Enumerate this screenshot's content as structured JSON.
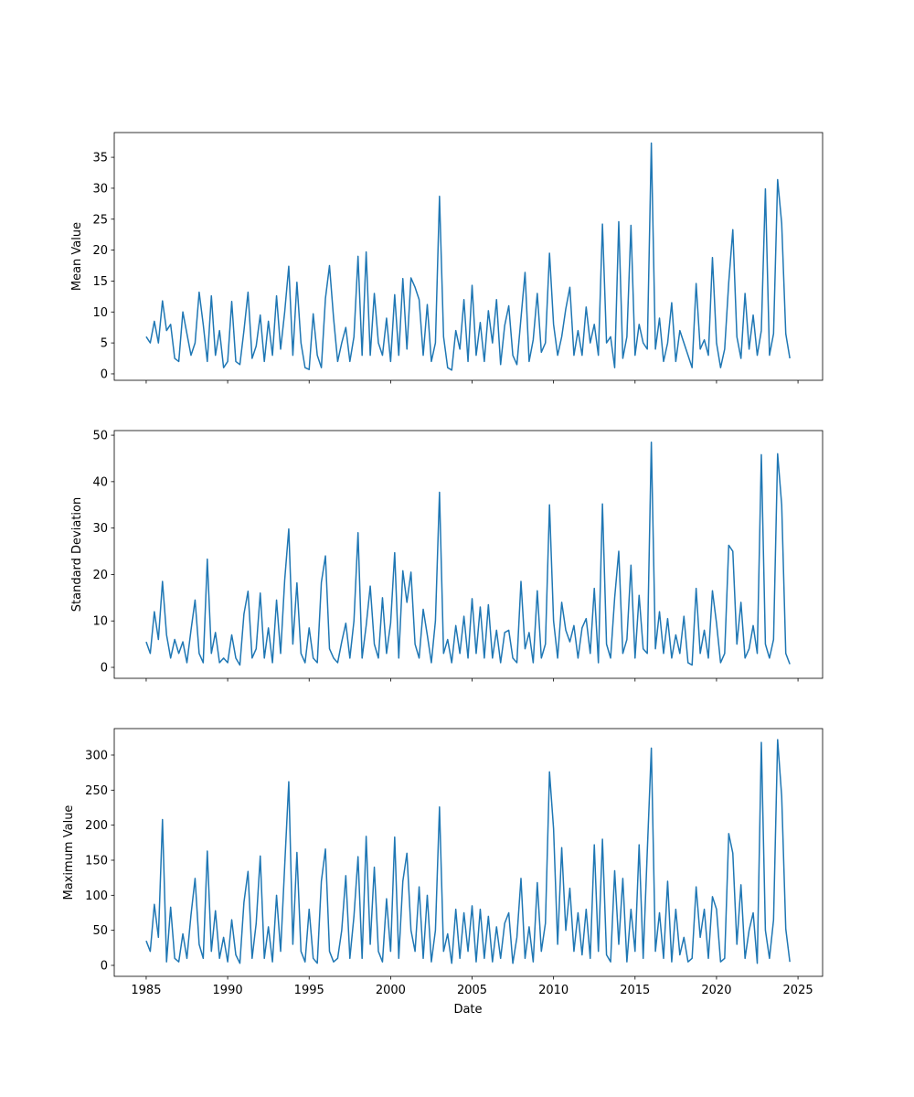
{
  "chart_data": {
    "type": "line",
    "xlabel": "Date",
    "xlim": [
      1983.04,
      2026.51
    ],
    "xticks": [
      1985,
      1990,
      1995,
      2000,
      2005,
      2010,
      2015,
      2020,
      2025
    ],
    "x": [
      1985,
      1985.25,
      1985.5,
      1985.75,
      1986,
      1986.25,
      1986.5,
      1986.75,
      1987,
      1987.25,
      1987.5,
      1987.75,
      1988,
      1988.25,
      1988.5,
      1988.75,
      1989,
      1989.25,
      1989.5,
      1989.75,
      1990,
      1990.25,
      1990.5,
      1990.75,
      1991,
      1991.25,
      1991.5,
      1991.75,
      1992,
      1992.25,
      1992.5,
      1992.75,
      1993,
      1993.25,
      1993.5,
      1993.75,
      1994,
      1994.25,
      1994.5,
      1994.75,
      1995,
      1995.25,
      1995.5,
      1995.75,
      1996,
      1996.25,
      1996.5,
      1996.75,
      1997,
      1997.25,
      1997.5,
      1997.75,
      1998,
      1998.25,
      1998.5,
      1998.75,
      1999,
      1999.25,
      1999.5,
      1999.75,
      2000,
      2000.25,
      2000.5,
      2000.75,
      2001,
      2001.25,
      2001.5,
      2001.75,
      2002,
      2002.25,
      2002.5,
      2002.75,
      2003,
      2003.25,
      2003.5,
      2003.75,
      2004,
      2004.25,
      2004.5,
      2004.75,
      2005,
      2005.25,
      2005.5,
      2005.75,
      2006,
      2006.25,
      2006.5,
      2006.75,
      2007,
      2007.25,
      2007.5,
      2007.75,
      2008,
      2008.25,
      2008.5,
      2008.75,
      2009,
      2009.25,
      2009.5,
      2009.75,
      2010,
      2010.25,
      2010.5,
      2010.75,
      2011,
      2011.25,
      2011.5,
      2011.75,
      2012,
      2012.25,
      2012.5,
      2012.75,
      2013,
      2013.25,
      2013.5,
      2013.75,
      2014,
      2014.25,
      2014.5,
      2014.75,
      2015,
      2015.25,
      2015.5,
      2015.75,
      2016,
      2016.25,
      2016.5,
      2016.75,
      2017,
      2017.25,
      2017.5,
      2017.75,
      2018,
      2018.25,
      2018.5,
      2018.75,
      2019,
      2019.25,
      2019.5,
      2019.75,
      2020,
      2020.25,
      2020.5,
      2020.75,
      2021,
      2021.25,
      2021.5,
      2021.75,
      2022,
      2022.25,
      2022.5,
      2022.75,
      2023,
      2023.25,
      2023.5,
      2023.75,
      2024,
      2024.25,
      2024.5
    ],
    "panels": [
      {
        "ylabel": "Mean Value",
        "ylim": [
          -1.04,
          39.0
        ],
        "yticks": [
          0,
          5,
          10,
          15,
          20,
          25,
          30,
          35
        ],
        "series": [
          {
            "color": "#1f77b4",
            "values": [
              6,
              5,
              8.5,
              5,
              11.8,
              7,
              8,
              2.5,
              2,
              10,
              6.5,
              3,
              5,
              13.2,
              8,
              2,
              12.6,
              3,
              7,
              1,
              2,
              11.7,
              2,
              1.5,
              7,
              13.2,
              2.5,
              4.5,
              9.5,
              2,
              8.5,
              3,
              12.6,
              4,
              10,
              17.4,
              3,
              14.8,
              5,
              1,
              0.7,
              9.7,
              3,
              1,
              12.2,
              17.5,
              9,
              2,
              5,
              7.5,
              2,
              6,
              19,
              3,
              19.7,
              3,
              13,
              5,
              3,
              9,
              2,
              12.8,
              3,
              15.4,
              4,
              15.5,
              14,
              12,
              3,
              11.2,
              2,
              5,
              28.7,
              6,
              1,
              0.6,
              7,
              4,
              12,
              2,
              14.3,
              3,
              8.3,
              2,
              10.2,
              5,
              12,
              1.5,
              7.8,
              11,
              3,
              1.5,
              9,
              16.4,
              2,
              5.5,
              13,
              3.5,
              5,
              19.5,
              8,
              3,
              6,
              10.5,
              14,
              3,
              7,
              3,
              10.8,
              5,
              8,
              3,
              24.2,
              5,
              6,
              1,
              24.6,
              2.5,
              6,
              24,
              3,
              8,
              5,
              4,
              37.3,
              4,
              9,
              2,
              5,
              11.5,
              2,
              7,
              5,
              3,
              1,
              14.6,
              4,
              5.5,
              3,
              18.8,
              5,
              1,
              4,
              14.8,
              23.3,
              6,
              2.5,
              13,
              4,
              9.5,
              3,
              7,
              29.9,
              3,
              6.5,
              31.4,
              24.3,
              6.5,
              2.5
            ]
          }
        ]
      },
      {
        "ylabel": "Standard Deviation",
        "ylim": [
          -2.36,
          51.0
        ],
        "yticks": [
          0,
          10,
          20,
          30,
          40,
          50
        ],
        "series": [
          {
            "color": "#1f77b4",
            "values": [
              5.5,
              3,
              12,
              6,
              18.5,
              7,
              2,
              6,
              3,
              5.5,
              1,
              8,
              14.5,
              3,
              1,
              23.3,
              3,
              7.5,
              1,
              2,
              1,
              7,
              2,
              0.5,
              11.5,
              16.4,
              2,
              4,
              16,
              2,
              8.5,
              1,
              14.5,
              3,
              18.8,
              29.8,
              5,
              18.2,
              3,
              1,
              8.5,
              2,
              1,
              18.3,
              24,
              4,
              2,
              1,
              5.5,
              9.5,
              2,
              10,
              29,
              2,
              9,
              17.5,
              5,
              2,
              15,
              3,
              9.5,
              24.7,
              2,
              20.8,
              14,
              20.5,
              5,
              2,
              12.5,
              7,
              1,
              10,
              37.7,
              3,
              6,
              1,
              9,
              3,
              11,
              2,
              14.8,
              3,
              13,
              2,
              13.5,
              2,
              8,
              1,
              7.5,
              8,
              2,
              1,
              18.5,
              4,
              7.5,
              1,
              16.5,
              2,
              5,
              35,
              10,
              2,
              14,
              8,
              5.5,
              9,
              2,
              8.5,
              10.5,
              3,
              17,
              1,
              35.2,
              5,
              2,
              15,
              25,
              3,
              6,
              22,
              2,
              15.5,
              4,
              3,
              48.5,
              4,
              12,
              3,
              10.5,
              2,
              7,
              3,
              11,
              1,
              0.5,
              17,
              3,
              8,
              2,
              16.5,
              9.5,
              1,
              3,
              26.3,
              25,
              5,
              14,
              2,
              4,
              9,
              3,
              45.8,
              5,
              2,
              6,
              46,
              35,
              3,
              0.7
            ]
          }
        ]
      },
      {
        "ylabel": "Maximum Value",
        "ylim": [
          -15.65,
          337.8
        ],
        "yticks": [
          0,
          50,
          100,
          150,
          200,
          250,
          300
        ],
        "series": [
          {
            "color": "#1f77b4",
            "values": [
              35,
              20,
              87,
              40,
              208,
              5,
              83,
              10,
              5,
              45,
              10,
              72,
              124,
              30,
              10,
              163,
              20,
              78,
              10,
              40,
              5,
              65,
              15,
              3,
              90,
              134,
              10,
              60,
              156,
              10,
              55,
              5,
              100,
              20,
              142,
              262,
              30,
              161,
              20,
              5,
              80,
              10,
              3,
              120,
              166,
              20,
              5,
              10,
              50,
              128,
              10,
              70,
              155,
              10,
              184,
              30,
              140,
              20,
              5,
              95,
              20,
              183,
              10,
              120,
              160,
              50,
              20,
              112,
              10,
              100,
              5,
              50,
              226,
              20,
              45,
              3,
              80,
              10,
              75,
              20,
              85,
              5,
              80,
              10,
              70,
              5,
              55,
              10,
              60,
              75,
              3,
              40,
              124,
              10,
              55,
              5,
              118,
              20,
              60,
              276,
              195,
              30,
              168,
              50,
              110,
              20,
              75,
              15,
              80,
              10,
              172,
              20,
              180,
              15,
              5,
              135,
              30,
              124,
              5,
              80,
              20,
              172,
              10,
              162,
              310,
              20,
              75,
              10,
              120,
              5,
              80,
              15,
              40,
              5,
              10,
              112,
              40,
              80,
              10,
              98,
              80,
              5,
              10,
              188,
              160,
              30,
              115,
              10,
              50,
              75,
              3,
              318,
              50,
              10,
              65,
              322,
              241,
              52,
              5
            ]
          }
        ]
      }
    ]
  }
}
